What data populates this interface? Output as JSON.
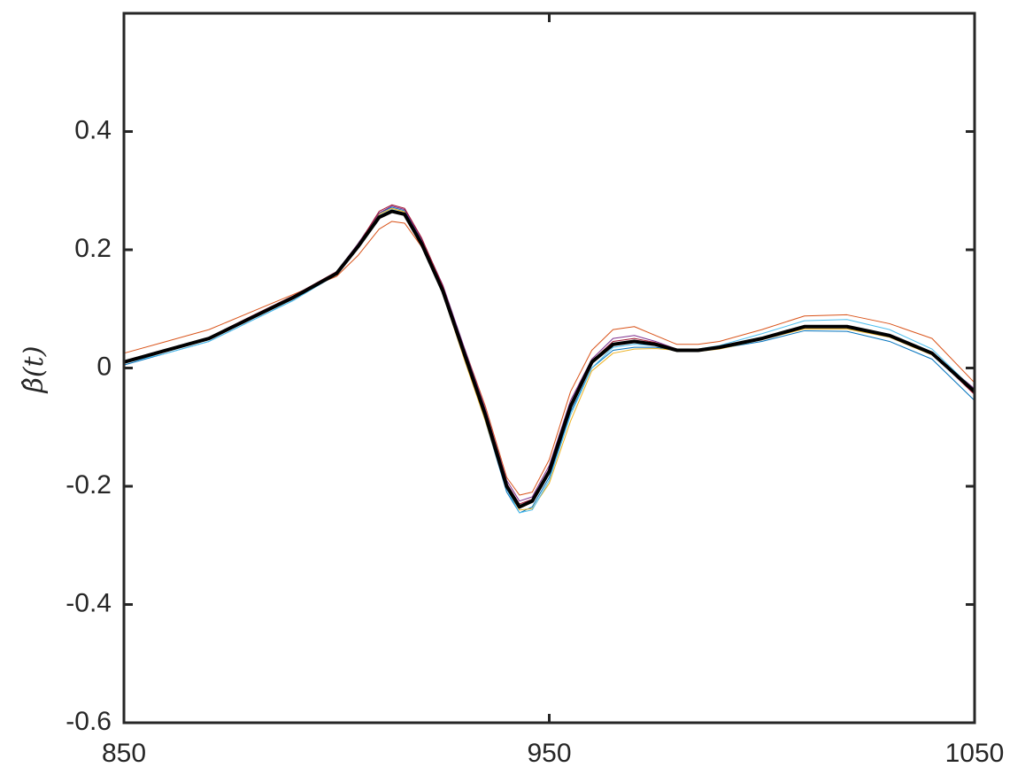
{
  "chart_data": {
    "type": "line",
    "y_label": "β̂(t)",
    "x": [
      850,
      860,
      870,
      880,
      890,
      900,
      905,
      910,
      913,
      916,
      920,
      925,
      930,
      935,
      940,
      943,
      946,
      950,
      955,
      960,
      965,
      970,
      975,
      980,
      985,
      990,
      1000,
      1010,
      1020,
      1030,
      1040,
      1050
    ],
    "series": [
      {
        "color": "#d95319",
        "line_width": 1,
        "values": [
          0.025,
          0.045,
          0.065,
          0.095,
          0.125,
          0.155,
          0.19,
          0.235,
          0.248,
          0.245,
          0.205,
          0.135,
          0.035,
          -0.065,
          -0.185,
          -0.215,
          -0.21,
          -0.155,
          -0.04,
          0.03,
          0.065,
          0.07,
          0.055,
          0.04,
          0.04,
          0.045,
          0.065,
          0.088,
          0.09,
          0.075,
          0.05,
          -0.025
        ]
      },
      {
        "color": "#0072bd",
        "line_width": 1,
        "values": [
          0.005,
          0.025,
          0.045,
          0.08,
          0.115,
          0.16,
          0.21,
          0.262,
          0.272,
          0.266,
          0.215,
          0.13,
          0.02,
          -0.09,
          -0.21,
          -0.245,
          -0.235,
          -0.185,
          -0.075,
          0.0,
          0.03,
          0.035,
          0.035,
          0.03,
          0.03,
          0.033,
          0.045,
          0.063,
          0.062,
          0.045,
          0.015,
          -0.055
        ]
      },
      {
        "color": "#edb120",
        "line_width": 1,
        "values": [
          0.012,
          0.03,
          0.05,
          0.085,
          0.12,
          0.162,
          0.21,
          0.26,
          0.27,
          0.264,
          0.21,
          0.125,
          0.015,
          -0.09,
          -0.205,
          -0.24,
          -0.238,
          -0.195,
          -0.09,
          -0.005,
          0.025,
          0.032,
          0.033,
          0.03,
          0.028,
          0.032,
          0.048,
          0.066,
          0.066,
          0.052,
          0.022,
          -0.042
        ]
      },
      {
        "color": "#7e2f8e",
        "line_width": 1,
        "values": [
          0.012,
          0.032,
          0.052,
          0.087,
          0.122,
          0.163,
          0.21,
          0.262,
          0.274,
          0.268,
          0.218,
          0.14,
          0.035,
          -0.07,
          -0.19,
          -0.225,
          -0.218,
          -0.165,
          -0.055,
          0.015,
          0.05,
          0.055,
          0.045,
          0.032,
          0.03,
          0.034,
          0.05,
          0.07,
          0.07,
          0.055,
          0.025,
          -0.035
        ]
      },
      {
        "color": "#4dbeee",
        "line_width": 1,
        "values": [
          0.008,
          0.025,
          0.045,
          0.08,
          0.115,
          0.158,
          0.205,
          0.258,
          0.268,
          0.262,
          0.212,
          0.128,
          0.02,
          -0.085,
          -0.205,
          -0.245,
          -0.24,
          -0.19,
          -0.08,
          0.0,
          0.035,
          0.04,
          0.038,
          0.032,
          0.032,
          0.038,
          0.058,
          0.08,
          0.082,
          0.065,
          0.032,
          -0.038
        ]
      },
      {
        "color": "#a2142f",
        "line_width": 1,
        "values": [
          0.01,
          0.03,
          0.052,
          0.088,
          0.123,
          0.163,
          0.208,
          0.265,
          0.276,
          0.27,
          0.22,
          0.138,
          0.03,
          -0.075,
          -0.195,
          -0.23,
          -0.222,
          -0.17,
          -0.06,
          0.012,
          0.045,
          0.05,
          0.043,
          0.032,
          0.03,
          0.035,
          0.05,
          0.07,
          0.07,
          0.055,
          0.024,
          -0.045
        ]
      },
      {
        "color": "#000000",
        "line_width": 4,
        "values": [
          0.01,
          0.03,
          0.05,
          0.085,
          0.12,
          0.16,
          0.205,
          0.255,
          0.265,
          0.26,
          0.21,
          0.13,
          0.025,
          -0.08,
          -0.2,
          -0.235,
          -0.225,
          -0.175,
          -0.065,
          0.01,
          0.04,
          0.045,
          0.04,
          0.03,
          0.03,
          0.035,
          0.05,
          0.07,
          0.07,
          0.055,
          0.025,
          -0.04
        ]
      }
    ],
    "xlim": [
      850,
      1050
    ],
    "xticks": [
      850,
      950,
      1050
    ],
    "ylim": [
      -0.6,
      0.6
    ],
    "yticks": [
      -0.6,
      -0.4,
      -0.2,
      0,
      0.2,
      0.4
    ],
    "grid": false
  }
}
